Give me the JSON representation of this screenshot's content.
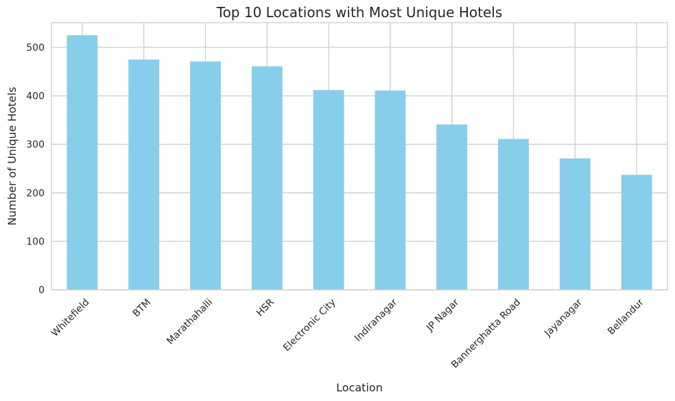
{
  "chart_data": {
    "type": "bar",
    "title": "Top 10 Locations with Most Unique Hotels",
    "xlabel": "Location",
    "ylabel": "Number of Unique Hotels",
    "categories": [
      "Whitefield",
      "BTM",
      "Marathahalli",
      "HSR",
      "Electronic City",
      "Indiranagar",
      "JP Nagar",
      "Bannerghatta Road",
      "Jayanagar",
      "Bellandur"
    ],
    "values": [
      525,
      475,
      471,
      461,
      412,
      411,
      341,
      311,
      271,
      237
    ],
    "ylim": [
      0,
      551
    ],
    "yticks": [
      0,
      100,
      200,
      300,
      400,
      500
    ],
    "grid": true,
    "legend": "none",
    "bar_color": "#87ceeb"
  }
}
